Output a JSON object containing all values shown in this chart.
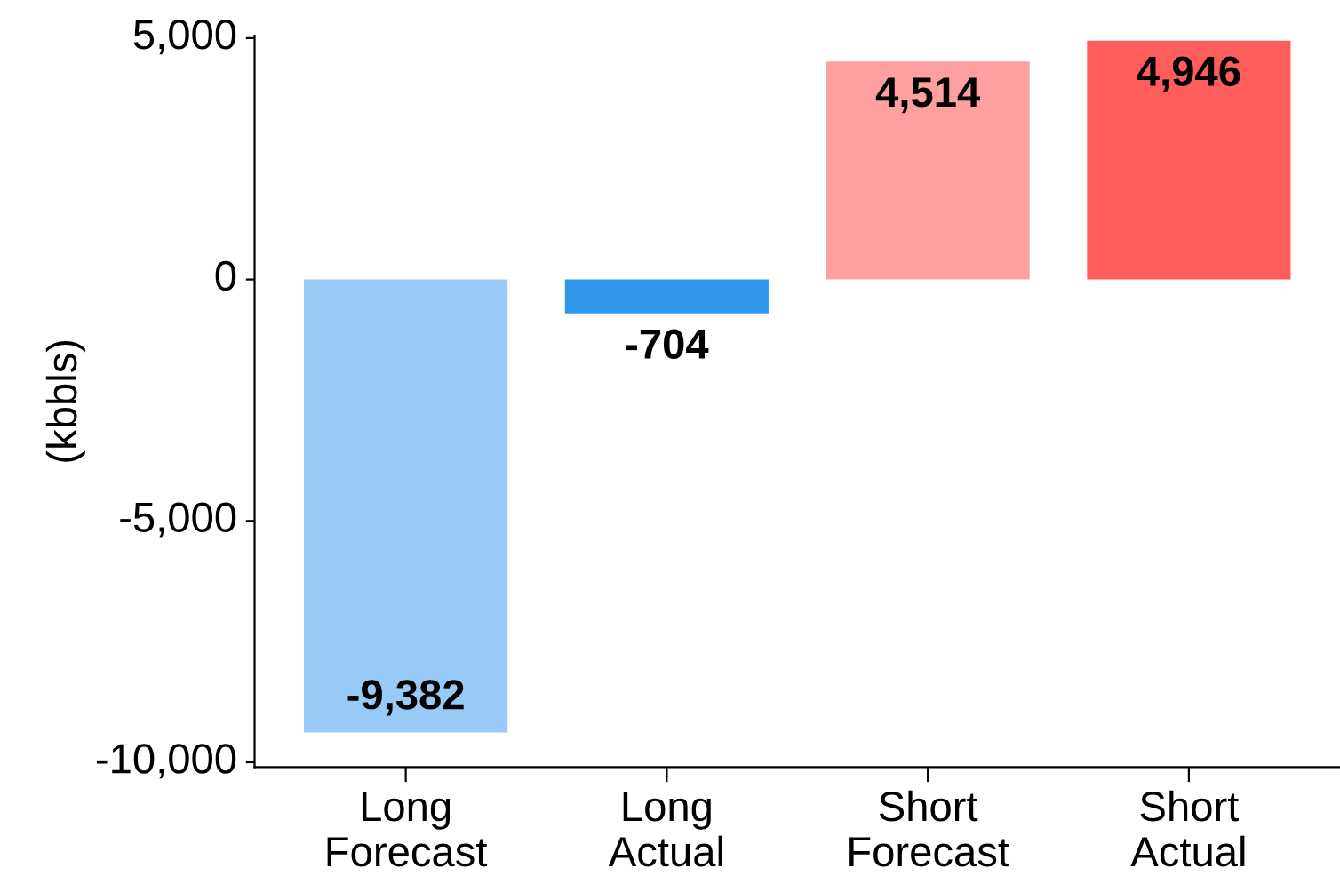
{
  "chart_data": {
    "type": "bar",
    "ylabel": "(kbbls)",
    "categories": [
      "Long Forecast",
      "Long Actual",
      "Short Forecast",
      "Short Actual"
    ],
    "values": [
      -9382,
      -704,
      4514,
      4946
    ],
    "colors": [
      "#99c9f5",
      "#2f96ea",
      "#ffa0a0",
      "#ff5c5c"
    ],
    "value_labels": [
      "-9,382",
      "-704",
      "4,514",
      "4,946"
    ],
    "ylim": [
      -10100,
      5050
    ],
    "yticks": [
      {
        "value": -10000,
        "label": "-10,000"
      },
      {
        "value": -5000,
        "label": "-5,000"
      },
      0,
      {
        "value": 5000,
        "label": "5,000"
      }
    ],
    "grid": false
  }
}
